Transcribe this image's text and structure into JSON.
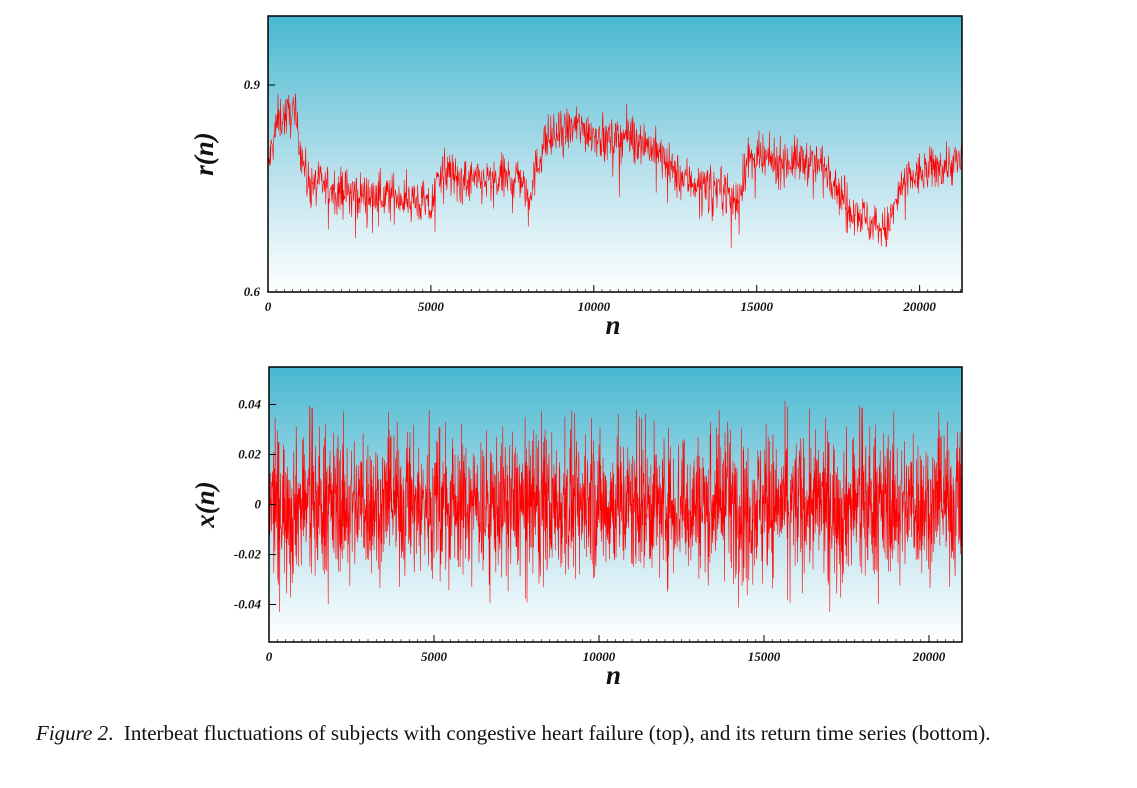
{
  "figure": {
    "caption_label": "Figure 2",
    "caption_text": "Interbeat fluctuations of subjects with congestive heart failure (top), and its return time series (bottom)."
  },
  "colors": {
    "series": "#ff0000",
    "background_top": "#48b8d0",
    "background_bottom": "#ffffff"
  },
  "chart_data": [
    {
      "type": "line",
      "xlabel": "n",
      "ylabel": "r(n)",
      "xlim": [
        0,
        21300
      ],
      "ylim": [
        0.6,
        1.0
      ],
      "xticks": [
        0,
        5000,
        10000,
        15000,
        20000
      ],
      "yticks": [
        0.6,
        0.9
      ],
      "ytick_labels": [
        "0.6",
        "0.9"
      ],
      "grid": false,
      "series": [
        {
          "x": [
            0,
            300,
            800,
            1200,
            2000,
            3000,
            4000,
            4700,
            5000,
            5300,
            6000,
            7000,
            7700,
            8000,
            8500,
            9500,
            10500,
            11200,
            12000,
            12500,
            13000,
            14000,
            14400,
            14700,
            15500,
            16500,
            17200,
            17600,
            18000,
            18500,
            19000,
            19500,
            20500,
            21300
          ],
          "y": [
            0.78,
            0.85,
            0.86,
            0.76,
            0.75,
            0.74,
            0.74,
            0.73,
            0.72,
            0.78,
            0.76,
            0.76,
            0.77,
            0.74,
            0.82,
            0.84,
            0.82,
            0.83,
            0.8,
            0.77,
            0.76,
            0.75,
            0.73,
            0.79,
            0.79,
            0.79,
            0.78,
            0.74,
            0.72,
            0.7,
            0.69,
            0.76,
            0.78,
            0.79
          ]
        }
      ]
    },
    {
      "type": "line",
      "xlabel": "n",
      "ylabel": "x(n)",
      "xlim": [
        0,
        21000
      ],
      "ylim": [
        -0.055,
        0.055
      ],
      "xticks": [
        0,
        5000,
        10000,
        15000,
        20000
      ],
      "yticks": [
        -0.04,
        -0.02,
        0,
        0.02,
        0.04
      ],
      "ytick_labels": [
        "-0.04",
        "-0.02",
        "0",
        "0.02",
        "0.04"
      ],
      "grid": false,
      "series": [
        {
          "x": [
            0,
            21000
          ],
          "y": [
            0.0,
            0.0
          ],
          "typical_amplitude": 0.015,
          "max_amplitude": 0.04
        }
      ]
    }
  ]
}
